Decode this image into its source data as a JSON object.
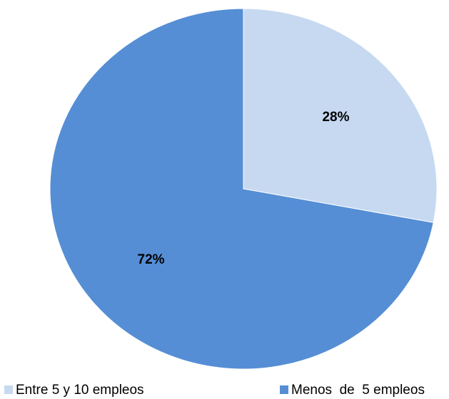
{
  "chart_data": {
    "type": "pie",
    "categories": [
      "Entre 5 y 10 empleos",
      "Menos  de  5 empleos"
    ],
    "values": [
      28,
      72
    ],
    "value_labels": [
      "28%",
      "72%"
    ],
    "colors": [
      "#c6d9f1",
      "#558ed5"
    ]
  }
}
